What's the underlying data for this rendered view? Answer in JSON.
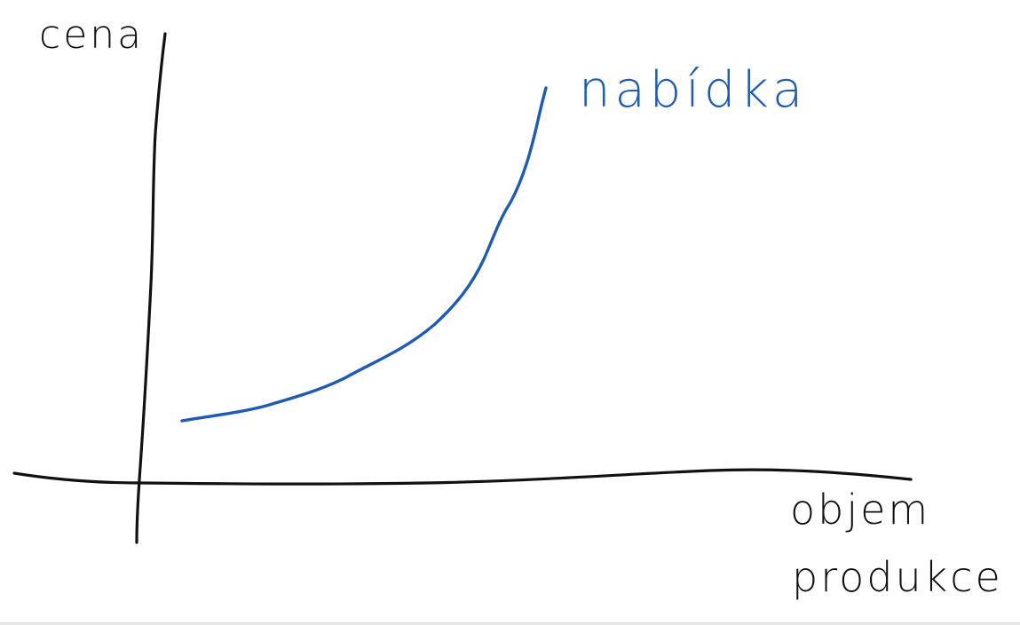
{
  "diagram": {
    "y_axis_label": "cena",
    "x_axis_label_line1": "objem",
    "x_axis_label_line2": "produkce",
    "curve_label": "nabídka"
  },
  "colors": {
    "ink": "#111111",
    "curve": "#1f5bb0"
  }
}
